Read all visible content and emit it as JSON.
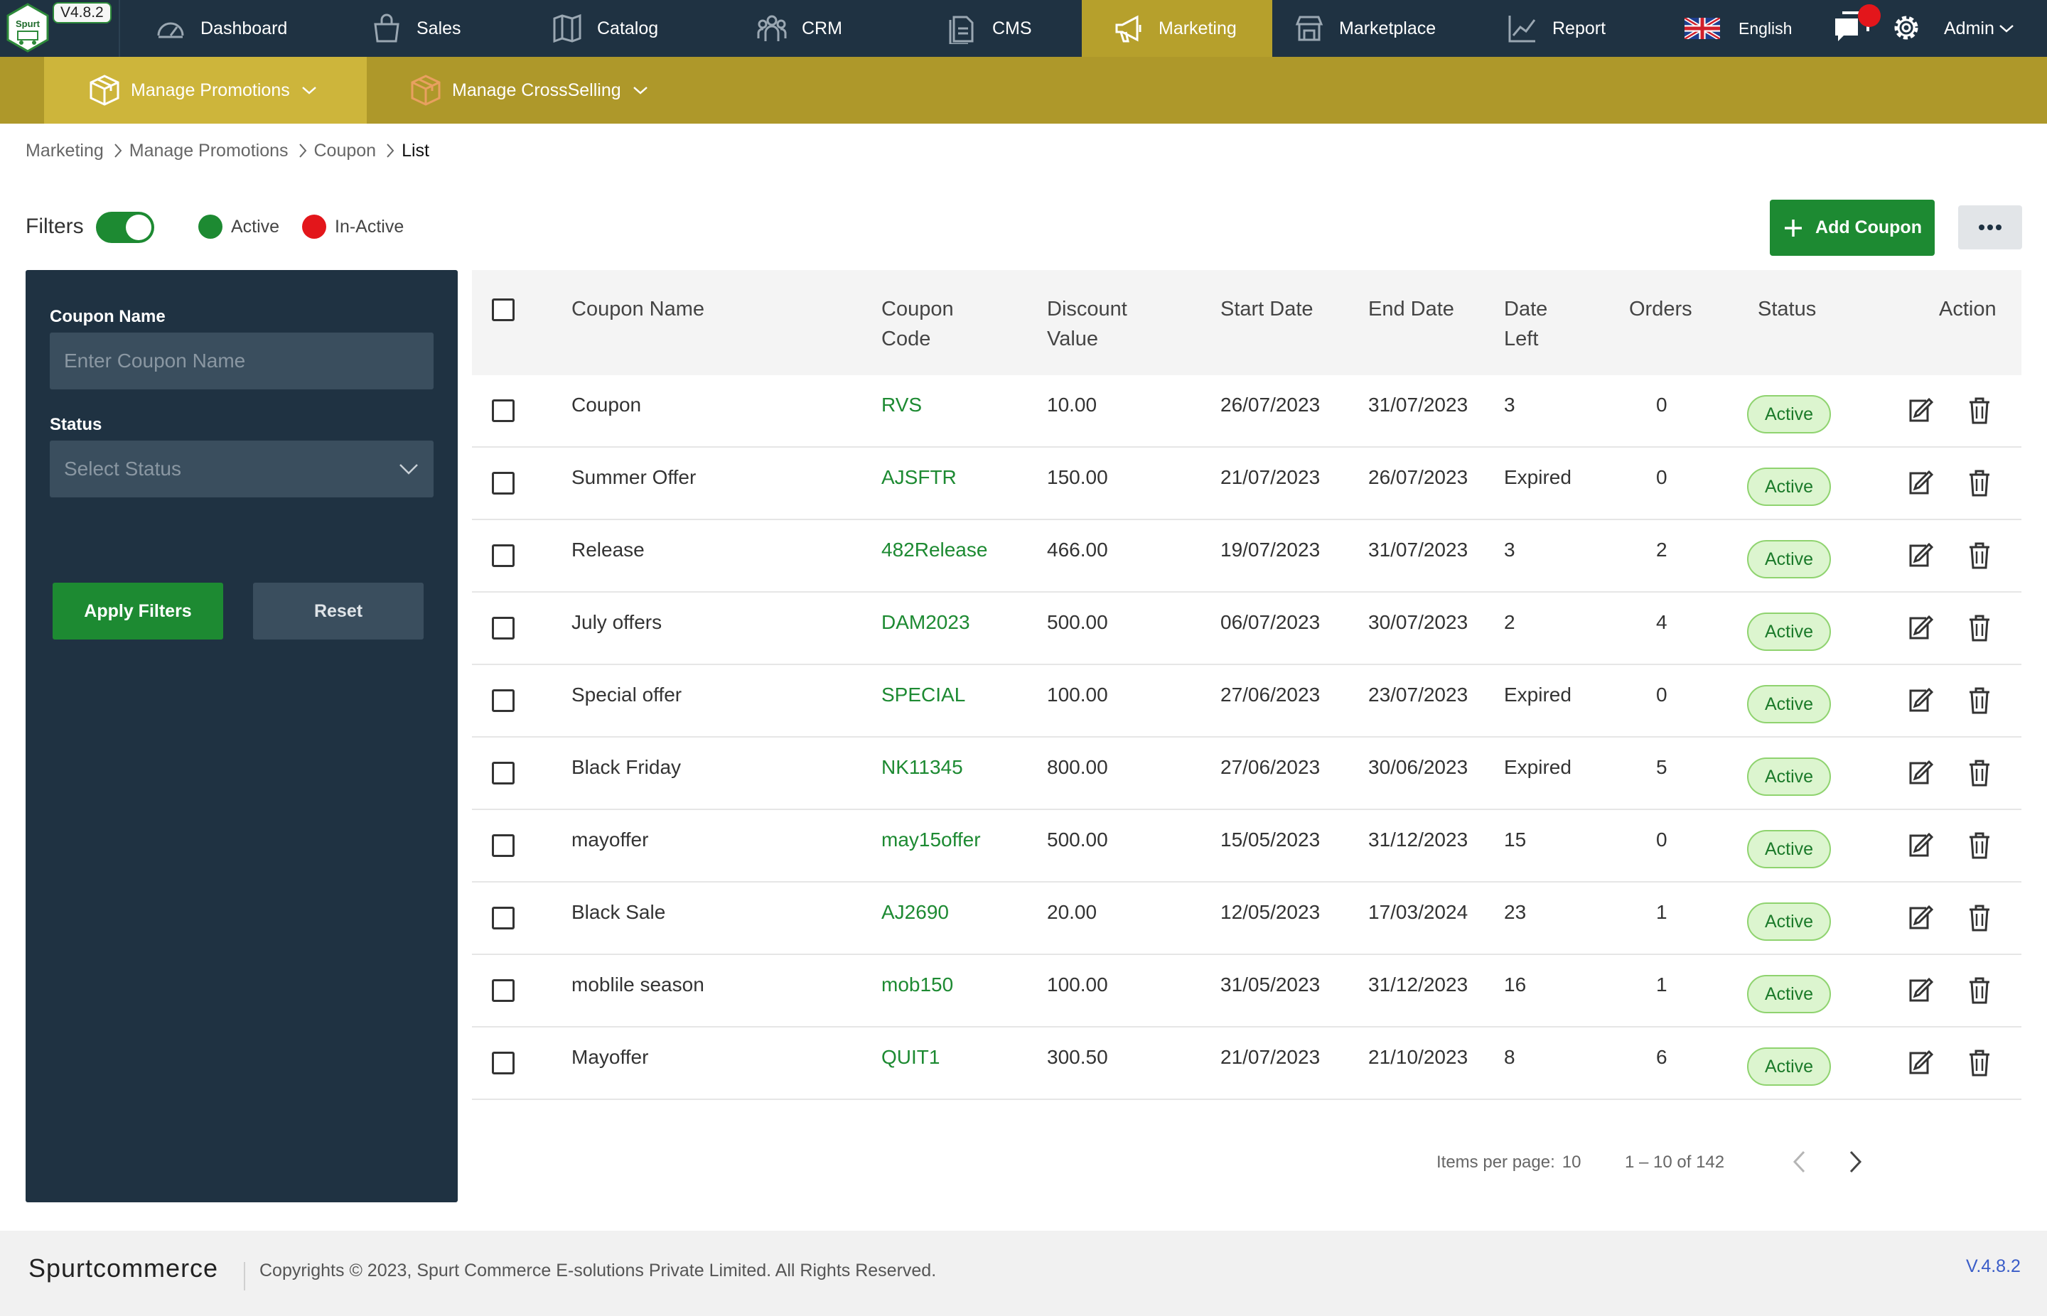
{
  "app": {
    "version_badge": "V4.8.2",
    "logo_text": "Spurt"
  },
  "topnav": {
    "items": [
      {
        "label": "Dashboard",
        "icon": "gauge-icon"
      },
      {
        "label": "Sales",
        "icon": "shopping-bag-icon"
      },
      {
        "label": "Catalog",
        "icon": "map-book-icon"
      },
      {
        "label": "CRM",
        "icon": "users-icon"
      },
      {
        "label": "CMS",
        "icon": "document-icon"
      },
      {
        "label": "Marketing",
        "icon": "megaphone-icon",
        "active": true
      },
      {
        "label": "Marketplace",
        "icon": "store-icon"
      },
      {
        "label": "Report",
        "icon": "chart-line-icon"
      }
    ],
    "language": "English",
    "user": "Admin"
  },
  "subnav": {
    "items": [
      {
        "label": "Manage Promotions",
        "icon": "box-icon",
        "active": true
      },
      {
        "label": "Manage CrossSelling",
        "icon": "box-icon"
      }
    ]
  },
  "breadcrumb": [
    "Marketing",
    "Manage Promotions",
    "Coupon",
    "List"
  ],
  "filterbar": {
    "label": "Filters",
    "legend_active": "Active",
    "legend_inactive": "In-Active",
    "add_button": "Add Coupon"
  },
  "filter_panel": {
    "coupon_name_label": "Coupon Name",
    "coupon_name_placeholder": "Enter Coupon Name",
    "status_label": "Status",
    "status_placeholder": "Select Status",
    "apply_button": "Apply Filters",
    "reset_button": "Reset"
  },
  "table": {
    "columns": {
      "name": "Coupon Name",
      "code_1": "Coupon",
      "code_2": "Code",
      "discount_1": "Discount",
      "discount_2": "Value",
      "start": "Start Date",
      "end": "End Date",
      "left_1": "Date",
      "left_2": "Left",
      "orders": "Orders",
      "status": "Status",
      "action": "Action"
    },
    "rows": [
      {
        "name": "Coupon",
        "code": "RVS",
        "discount": "10.00",
        "start": "26/07/2023",
        "end": "31/07/2023",
        "left": "3",
        "orders": "0",
        "status": "Active"
      },
      {
        "name": "Summer Offer",
        "code": "AJSFTR",
        "discount": "150.00",
        "start": "21/07/2023",
        "end": "26/07/2023",
        "left": "Expired",
        "orders": "0",
        "status": "Active"
      },
      {
        "name": "Release",
        "code": "482Release",
        "discount": "466.00",
        "start": "19/07/2023",
        "end": "31/07/2023",
        "left": "3",
        "orders": "2",
        "status": "Active"
      },
      {
        "name": "July offers",
        "code": "DAM2023",
        "discount": "500.00",
        "start": "06/07/2023",
        "end": "30/07/2023",
        "left": "2",
        "orders": "4",
        "status": "Active"
      },
      {
        "name": "Special offer",
        "code": "SPECIAL",
        "discount": "100.00",
        "start": "27/06/2023",
        "end": "23/07/2023",
        "left": "Expired",
        "orders": "0",
        "status": "Active"
      },
      {
        "name": "Black Friday",
        "code": "NK11345",
        "discount": "800.00",
        "start": "27/06/2023",
        "end": "30/06/2023",
        "left": "Expired",
        "orders": "5",
        "status": "Active"
      },
      {
        "name": "mayoffer",
        "code": "may15offer",
        "discount": "500.00",
        "start": "15/05/2023",
        "end": "31/12/2023",
        "left": "15",
        "orders": "0",
        "status": "Active"
      },
      {
        "name": "Black Sale",
        "code": "AJ2690",
        "discount": "20.00",
        "start": "12/05/2023",
        "end": "17/03/2024",
        "left": "23",
        "orders": "1",
        "status": "Active"
      },
      {
        "name": "moblile season",
        "code": "mob150",
        "discount": "100.00",
        "start": "31/05/2023",
        "end": "31/12/2023",
        "left": "16",
        "orders": "1",
        "status": "Active"
      },
      {
        "name": "Mayoffer",
        "code": "QUIT1",
        "discount": "300.50",
        "start": "21/07/2023",
        "end": "21/10/2023",
        "left": "8",
        "orders": "6",
        "status": "Active"
      }
    ]
  },
  "pagination": {
    "items_per_page_label": "Items per page:",
    "items_per_page": "10",
    "range": "1 – 10 of 142"
  },
  "footer": {
    "brand": "Spurtcommerce",
    "copyright": "Copyrights © 2023, Spurt Commerce E-solutions Private Limited. All Rights Reserved.",
    "version": "V.4.8.2"
  },
  "colors": {
    "nav_bg": "#1f3242",
    "active_gold": "#b6a02c",
    "primary_green": "#1d8a32",
    "inactive_red": "#e3161b"
  }
}
